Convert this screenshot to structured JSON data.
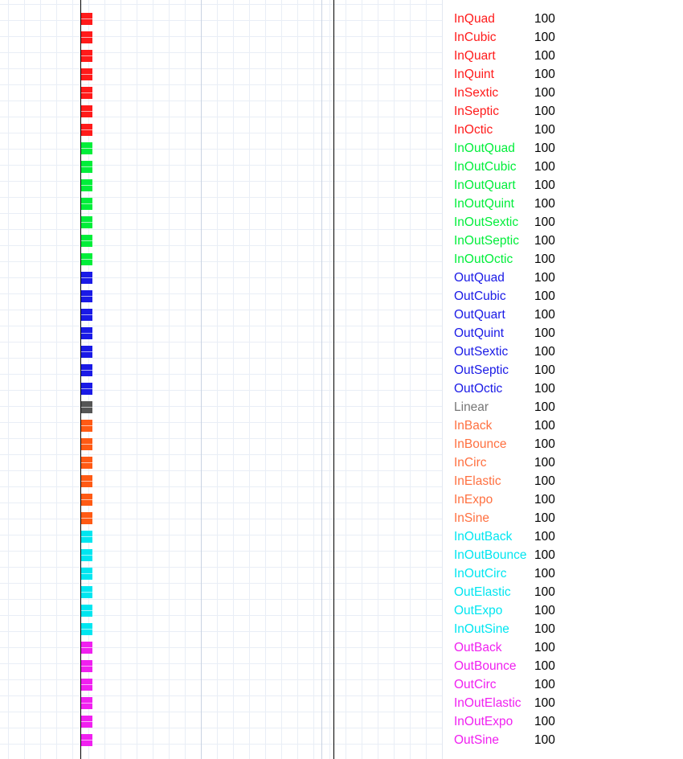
{
  "colors": {
    "In": "#ff1a1a",
    "InOut": "#00ee3a",
    "Out": "#1a1ae6",
    "Linear": "#555555",
    "Extra-In": "#ff5a14",
    "Extra-InOut": "#00e6f0",
    "Extra-Out": "#f020f0"
  },
  "label_colors": {
    "Linear": "#777777",
    "Extra-In": "#ff7040"
  },
  "easings": [
    {
      "name": "InQuad",
      "value": "100",
      "group": "In"
    },
    {
      "name": "InCubic",
      "value": "100",
      "group": "In"
    },
    {
      "name": "InQuart",
      "value": "100",
      "group": "In"
    },
    {
      "name": "InQuint",
      "value": "100",
      "group": "In"
    },
    {
      "name": "InSextic",
      "value": "100",
      "group": "In"
    },
    {
      "name": "InSeptic",
      "value": "100",
      "group": "In"
    },
    {
      "name": "InOctic",
      "value": "100",
      "group": "In"
    },
    {
      "name": "InOutQuad",
      "value": "100",
      "group": "InOut"
    },
    {
      "name": "InOutCubic",
      "value": "100",
      "group": "InOut"
    },
    {
      "name": "InOutQuart",
      "value": "100",
      "group": "InOut"
    },
    {
      "name": "InOutQuint",
      "value": "100",
      "group": "InOut"
    },
    {
      "name": "InOutSextic",
      "value": "100",
      "group": "InOut"
    },
    {
      "name": "InOutSeptic",
      "value": "100",
      "group": "InOut"
    },
    {
      "name": "InOutOctic",
      "value": "100",
      "group": "InOut"
    },
    {
      "name": "OutQuad",
      "value": "100",
      "group": "Out"
    },
    {
      "name": "OutCubic",
      "value": "100",
      "group": "Out"
    },
    {
      "name": "OutQuart",
      "value": "100",
      "group": "Out"
    },
    {
      "name": "OutQuint",
      "value": "100",
      "group": "Out"
    },
    {
      "name": "OutSextic",
      "value": "100",
      "group": "Out"
    },
    {
      "name": "OutSeptic",
      "value": "100",
      "group": "Out"
    },
    {
      "name": "OutOctic",
      "value": "100",
      "group": "Out"
    },
    {
      "name": "Linear",
      "value": "100",
      "group": "Linear"
    },
    {
      "name": "InBack",
      "value": "100",
      "group": "Extra-In"
    },
    {
      "name": "InBounce",
      "value": "100",
      "group": "Extra-In"
    },
    {
      "name": "InCirc",
      "value": "100",
      "group": "Extra-In"
    },
    {
      "name": "InElastic",
      "value": "100",
      "group": "Extra-In"
    },
    {
      "name": "InExpo",
      "value": "100",
      "group": "Extra-In"
    },
    {
      "name": "InSine",
      "value": "100",
      "group": "Extra-In"
    },
    {
      "name": "InOutBack",
      "value": "100",
      "group": "Extra-InOut"
    },
    {
      "name": "InOutBounce",
      "value": "100",
      "group": "Extra-InOut"
    },
    {
      "name": "InOutCirc",
      "value": "100",
      "group": "Extra-InOut"
    },
    {
      "name": "OutElastic",
      "value": "100",
      "group": "Extra-InOut"
    },
    {
      "name": "OutExpo",
      "value": "100",
      "group": "Extra-InOut"
    },
    {
      "name": "InOutSine",
      "value": "100",
      "group": "Extra-InOut"
    },
    {
      "name": "OutBack",
      "value": "100",
      "group": "Extra-Out"
    },
    {
      "name": "OutBounce",
      "value": "100",
      "group": "Extra-Out"
    },
    {
      "name": "OutCirc",
      "value": "100",
      "group": "Extra-Out"
    },
    {
      "name": "InOutElastic",
      "value": "100",
      "group": "Extra-Out"
    },
    {
      "name": "InOutExpo",
      "value": "100",
      "group": "Extra-Out"
    },
    {
      "name": "OutSine",
      "value": "100",
      "group": "Extra-Out"
    }
  ]
}
